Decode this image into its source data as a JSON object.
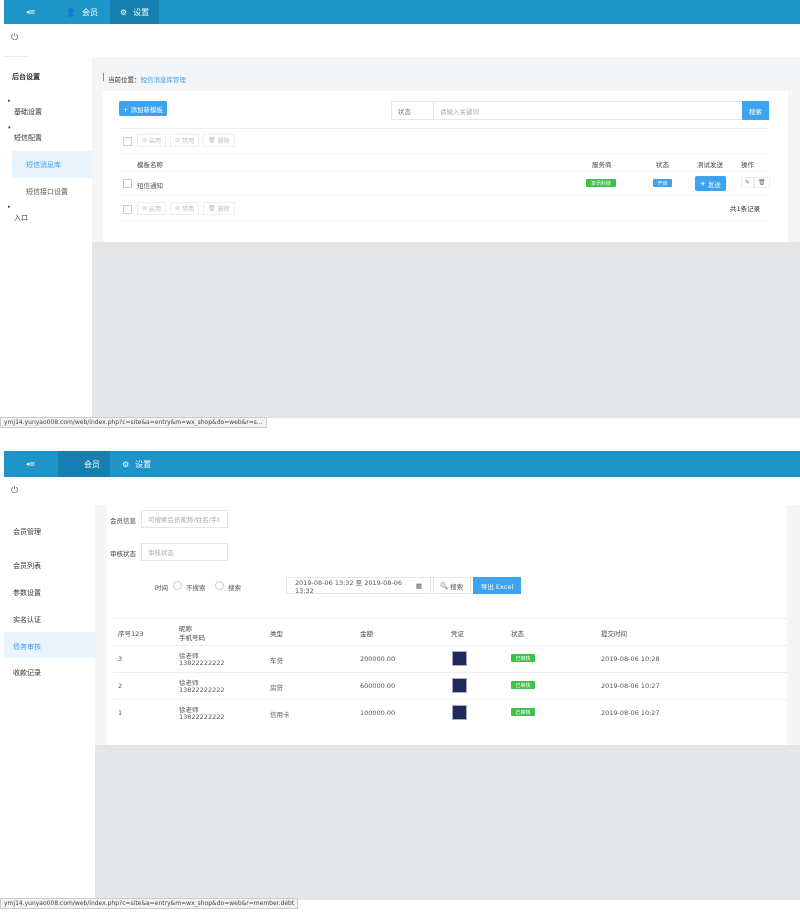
{
  "top": {
    "nav": {
      "menu_icon": "collapse-menu-icon",
      "tabs": [
        {
          "label": "会员",
          "icon": "user-icon"
        },
        {
          "label": "设置",
          "icon": "gear-icon"
        }
      ],
      "active": "设置"
    },
    "sidebar": {
      "title": "后台设置",
      "items": [
        {
          "label": "基础设置"
        },
        {
          "label": "短信配置",
          "children": [
            {
              "label": "短信消息库",
              "active": true
            },
            {
              "label": "短信接口设置"
            }
          ]
        },
        {
          "label": "入口"
        }
      ]
    },
    "breadcrumb": {
      "prefix": "当前位置：",
      "current": "短信消息库管理"
    },
    "add_button": "+ 添加新模板",
    "search": {
      "status_label": "状态",
      "placeholder": "请输入关键词",
      "button": "搜索"
    },
    "bulk": {
      "enable": "启用",
      "disable": "禁用",
      "delete": "删除"
    },
    "table": {
      "headers": {
        "name": "模板名称",
        "provider": "服务商",
        "status": "状态",
        "test": "测试发送",
        "ops": "操作"
      },
      "rows": [
        {
          "name": "短信通知",
          "provider": "享讯科技",
          "status": "开启",
          "send": "发送"
        }
      ]
    },
    "total": "共1条记录",
    "statusbar": "ymj14.yunyao008.com/web/index.php?c=site&a=entry&m=wx_shop&do=web&r=s..."
  },
  "bottom": {
    "nav": {
      "tabs": [
        {
          "label": "会员",
          "icon": "user-icon"
        },
        {
          "label": "设置",
          "icon": "gear-icon"
        }
      ],
      "active": "会员"
    },
    "sidebar": {
      "title": "会员管理",
      "items": [
        {
          "label": "会员列表"
        },
        {
          "label": "参数设置"
        },
        {
          "label": "实名认证"
        },
        {
          "label": "债务审核",
          "active": true
        },
        {
          "label": "收款记录"
        }
      ]
    },
    "filters": {
      "member_label": "会员信息",
      "member_placeholder": "可搜索会员昵称/姓名/手t",
      "review_label": "审核状态",
      "review_placeholder": "审核状态",
      "time_label": "时间",
      "radio_no": "不搜索",
      "radio_yes": "搜索",
      "date_range": "2019-08-06 13:32 至 2019-08-06 13:32",
      "search_button": "搜索",
      "export_button": "导出 Excel"
    },
    "table": {
      "headers": {
        "seq": "序号123",
        "nick": "昵称",
        "phone": "手机号码",
        "type": "类型",
        "amount": "金额",
        "proof": "凭证",
        "status": "状态",
        "time": "提交时间"
      },
      "rows": [
        {
          "seq": "3",
          "nick": "徐老师",
          "phone": "13822222222",
          "type": "车贷",
          "amount": "200000.00",
          "status": "已审核",
          "time": "2019-08-06 10:28"
        },
        {
          "seq": "2",
          "nick": "徐老师",
          "phone": "13822222222",
          "type": "房贷",
          "amount": "600000.00",
          "status": "已审核",
          "time": "2019-08-06 10:27"
        },
        {
          "seq": "1",
          "nick": "徐老师",
          "phone": "13822222222",
          "type": "信用卡",
          "amount": "100000.00",
          "status": "已审核",
          "time": "2019-08-06 10:27"
        }
      ]
    },
    "statusbar": "ymj14.yunyao008.com/web/index.php?c=site&a=entry&m=wx_shop&do=web&r=member.debt"
  },
  "colors": {
    "nav": "#1e95c9",
    "primary": "#3da2f0",
    "success": "#3fc04b"
  }
}
